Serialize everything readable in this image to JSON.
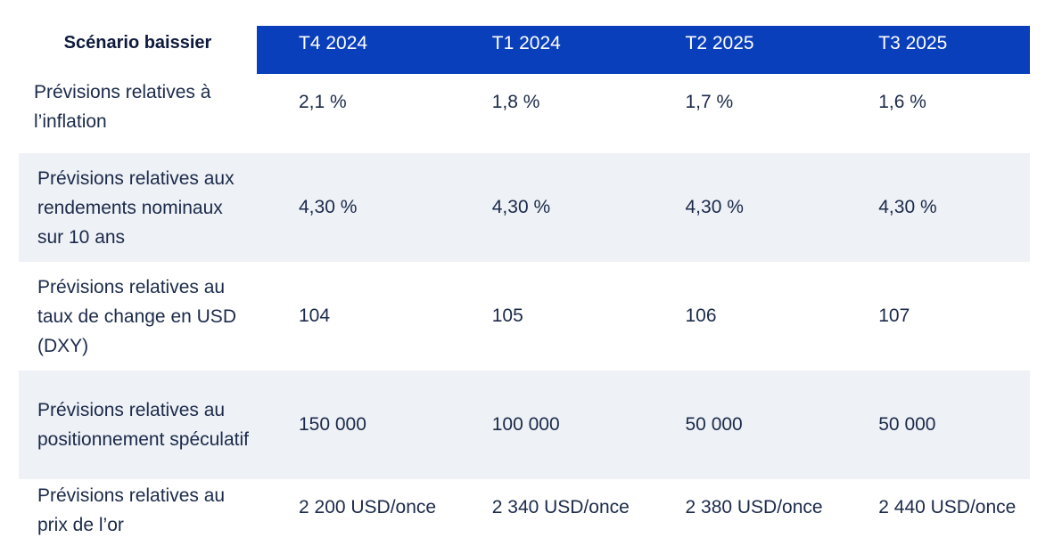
{
  "table": {
    "title": "Scénario baissier",
    "columns": [
      "T4 2024",
      "T1 2024",
      "T2 2025",
      "T3 2025"
    ],
    "rows": [
      {
        "label": "Prévisions relatives à l’inflation",
        "values": [
          "2,1 %",
          "1,8 %",
          "1,7 %",
          "1,6 %"
        ]
      },
      {
        "label": "Prévisions relatives aux rendements nominaux sur 10 ans",
        "values": [
          "4,30 %",
          "4,30 %",
          "4,30 %",
          "4,30 %"
        ]
      },
      {
        "label": "Prévisions relatives au taux de change en USD (DXY)",
        "values": [
          "104",
          "105",
          "106",
          "107"
        ]
      },
      {
        "label": "Prévisions relatives au positionnement spéculatif",
        "values": [
          "150 000",
          "100 000",
          "50 000",
          "50 000"
        ]
      },
      {
        "label": "Prévisions relatives au prix de l’or",
        "values": [
          "2 200 USD/once",
          "2 340 USD/once",
          "2 380 USD/once",
          "2 440 USD/once"
        ]
      }
    ]
  },
  "colors": {
    "header_bg": "#0a3fbc",
    "row_shade": "#eef1f5",
    "text": "#1b2a4a"
  }
}
